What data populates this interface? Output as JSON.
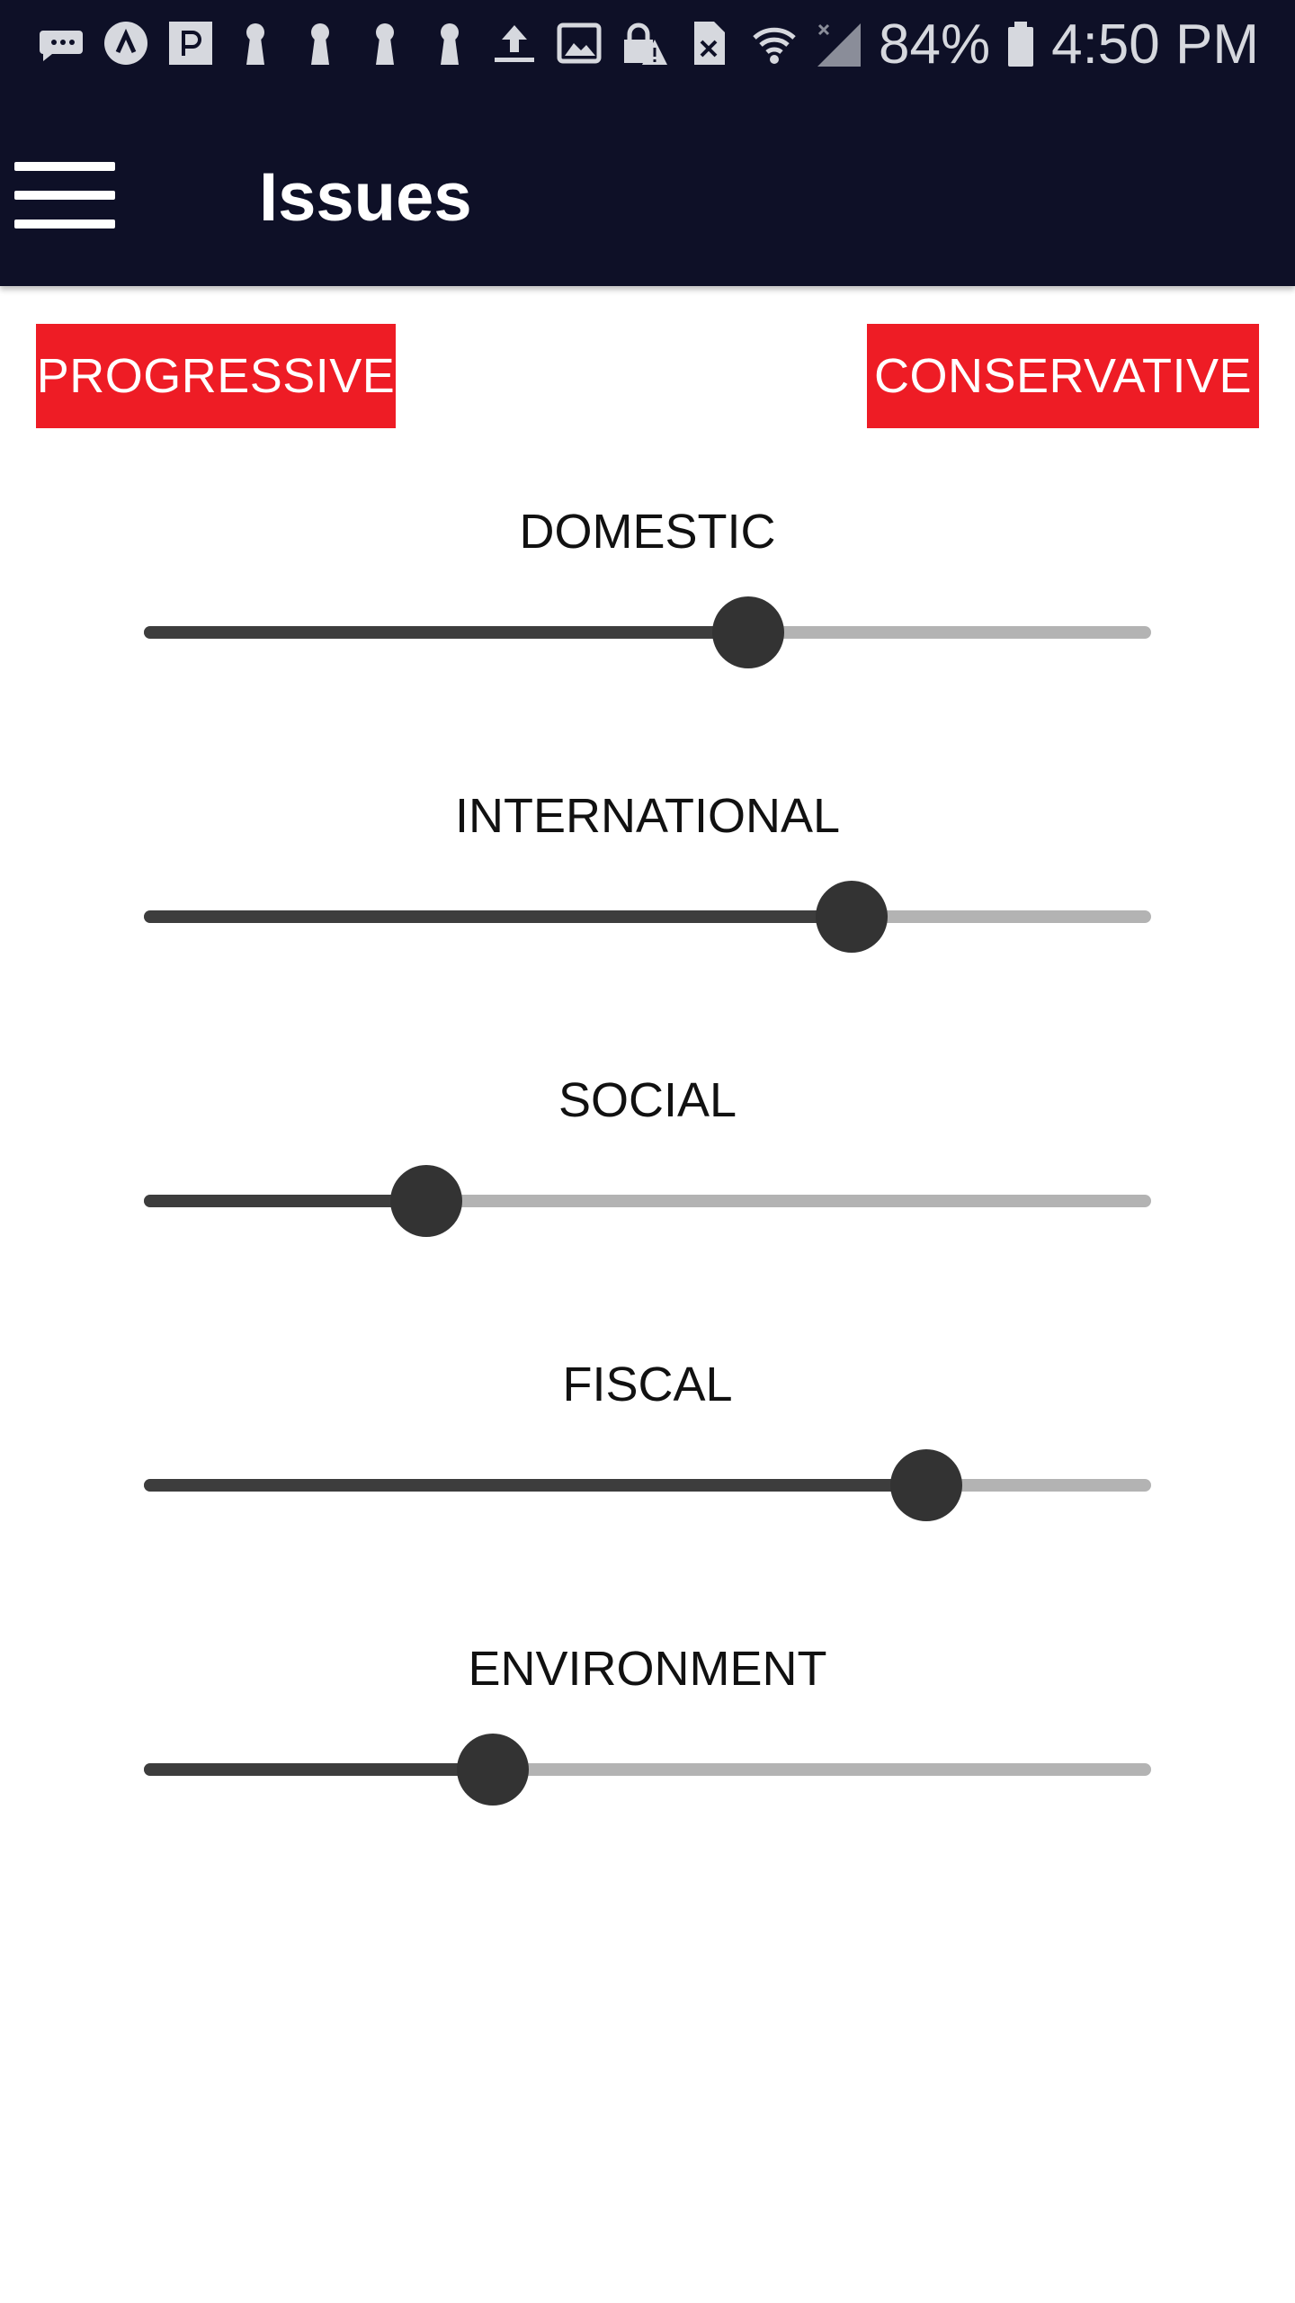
{
  "status_bar": {
    "icons": [
      "messages-icon",
      "app-a-icon",
      "app-p-icon",
      "keyhole-icon",
      "keyhole-icon",
      "keyhole-icon",
      "keyhole-icon",
      "upload-icon",
      "image-icon",
      "lock-warning-icon",
      "file-x-icon"
    ],
    "battery": "84%",
    "time": "4:50 PM"
  },
  "app_bar": {
    "title": "Issues",
    "background": "#0e1027"
  },
  "scale": {
    "left_label": "PROGRESSIVE",
    "right_label": "CONSERVATIVE",
    "button_color": "#ee1c25"
  },
  "sliders": [
    {
      "label": "DOMESTIC",
      "value": 0.6
    },
    {
      "label": "INTERNATIONAL",
      "value": 0.703
    },
    {
      "label": "SOCIAL",
      "value": 0.28
    },
    {
      "label": "FISCAL",
      "value": 0.777
    },
    {
      "label": "ENVIRONMENT",
      "value": 0.346
    }
  ]
}
